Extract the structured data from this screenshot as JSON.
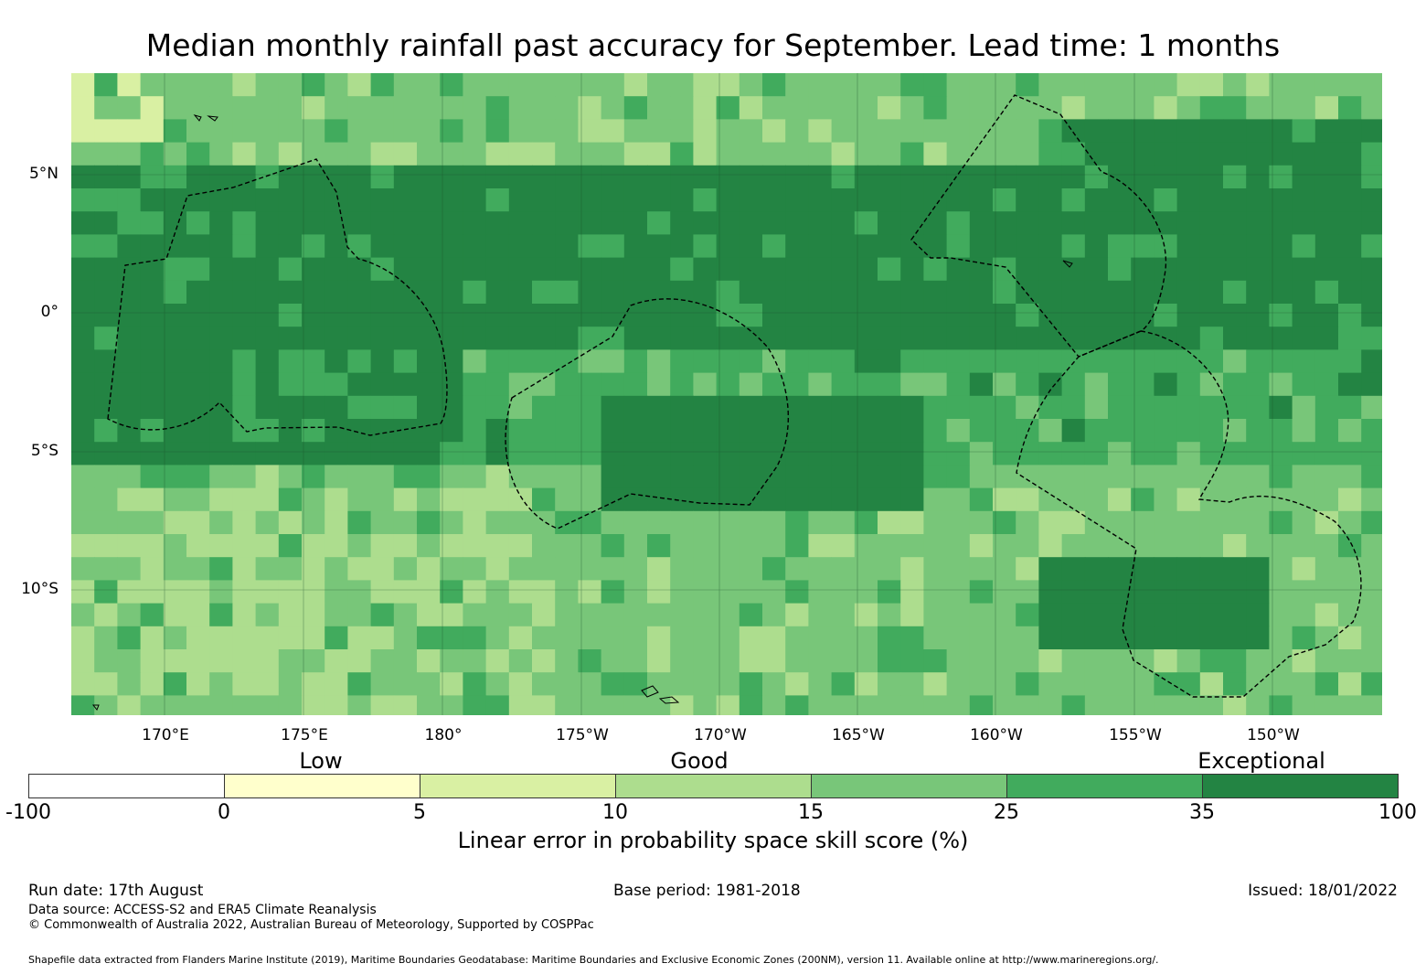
{
  "title": "Median monthly rainfall past accuracy for September. Lead time: 1 months",
  "map": {
    "lon_ticks": [
      "170°E",
      "175°E",
      "180°",
      "175°W",
      "170°W",
      "165°W",
      "160°W",
      "155°W",
      "150°W"
    ],
    "lat_ticks": [
      "5°N",
      "0°",
      "5°S",
      "10°S"
    ]
  },
  "legend": {
    "categories": [
      "Low",
      "Good",
      "Exceptional"
    ],
    "ticks": [
      "-100",
      "0",
      "5",
      "10",
      "15",
      "25",
      "35",
      "100"
    ],
    "colors": [
      "#ffffff",
      "#ffffcc",
      "#d9f0a3",
      "#addd8e",
      "#78c679",
      "#41ab5d",
      "#238443"
    ],
    "label": "Linear error in probability space skill score (%)"
  },
  "footer": {
    "run_date": "Run date: 17th August",
    "base_period": "Base period: 1981-2018",
    "issued": "Issued: 18/01/2022",
    "data_source": "Data source: ACCESS-S2 and ERA5 Climate Reanalysis",
    "copyright": "© Commonwealth of Australia 2022, Australian Bureau of Meteorology, Supported by COSPPac",
    "shapefile": "Shapefile data extracted from Flanders Marine Institute (2019), Maritime Boundaries Geodatabase: Maritime Boundaries and Exclusive Economic Zones (200NM), version 11. Available online at http://www.marineregions.org/."
  }
}
